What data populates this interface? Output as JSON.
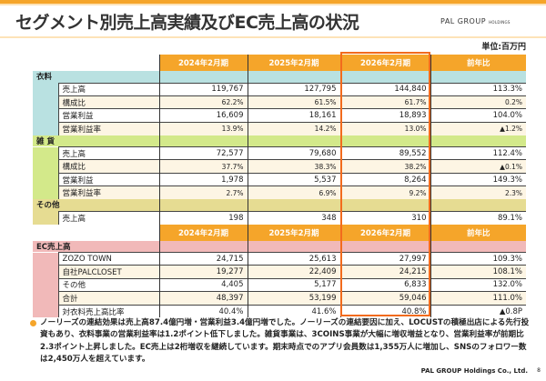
{
  "title": "セグメント別売上高実績及びEC売上高の状況",
  "logo": {
    "main": "PAL GROUP",
    "sub": "HOLDINGS"
  },
  "unit": "単位:百万円",
  "columns": [
    "2024年2月期",
    "2025年2月期",
    "2026年2月期",
    "前年比"
  ],
  "highlight_column": "2026年2月期",
  "colors": {
    "header": "#f5a52a",
    "highlight": "#f26b1d",
    "apparel": "#b9e1e1",
    "goods": "#d3e98a",
    "other": "#e6dc92",
    "ec": "#f1b9b9"
  },
  "groups": [
    {
      "label": "衣料",
      "cls": "c-apparel",
      "rows": [
        {
          "label": "売上高",
          "values": [
            "119,767",
            "127,795",
            "144,840",
            "113.3%"
          ]
        },
        {
          "label": "構成比",
          "small": true,
          "values": [
            "62.2%",
            "61.5%",
            "61.7%",
            "0.2%"
          ]
        },
        {
          "label": "営業利益",
          "values": [
            "16,609",
            "18,161",
            "18,893",
            "104.0%"
          ]
        },
        {
          "label": "営業利益率",
          "small": true,
          "values": [
            "13.9%",
            "14.2%",
            "13.0%",
            "▲1.2%"
          ]
        }
      ]
    },
    {
      "label": "雑 貨",
      "cls": "c-goods",
      "rows": [
        {
          "label": "売上高",
          "values": [
            "72,577",
            "79,680",
            "89,552",
            "112.4%"
          ]
        },
        {
          "label": "構成比",
          "small": true,
          "values": [
            "37.7%",
            "38.3%",
            "38.2%",
            "▲0.1%"
          ]
        },
        {
          "label": "営業利益",
          "values": [
            "1,978",
            "5,537",
            "8,264",
            "149.3%"
          ]
        },
        {
          "label": "営業利益率",
          "small": true,
          "values": [
            "2.7%",
            "6.9%",
            "9.2%",
            "2.3%"
          ]
        }
      ]
    },
    {
      "label": "その他",
      "cls": "c-other",
      "rows": [
        {
          "label": "売上高",
          "values": [
            "198",
            "348",
            "310",
            "89.1%"
          ]
        }
      ]
    },
    {
      "label": "EC売上高",
      "cls": "c-ec",
      "header_before": true,
      "rows": [
        {
          "label": "ZOZO TOWN",
          "values": [
            "24,715",
            "25,613",
            "27,997",
            "109.3%"
          ]
        },
        {
          "label": "自社PALCLOSET",
          "values": [
            "19,277",
            "22,409",
            "24,215",
            "108.1%"
          ]
        },
        {
          "label": "その他",
          "values": [
            "4,405",
            "5,177",
            "6,833",
            "132.0%"
          ]
        },
        {
          "label": "合計",
          "values": [
            "48,397",
            "53,199",
            "59,046",
            "111.0%"
          ]
        },
        {
          "label": "対衣料売上高比率",
          "values": [
            "40.4%",
            "41.6%",
            "40.8%",
            "▲0.8P"
          ]
        }
      ]
    }
  ],
  "note": "ノーリーズの連結効果は売上高87.4億円増・営業利益3.4億円増でした。ノーリーズの連結要因に加え、LOCUSTの積極出店による先行投資もあり、衣料事業の営業利益率は1.2ポイント低下しました。雑貨事業は、3COINS事業が大幅に増収増益となり、営業利益率が前期比2.3ポイント上昇しました。EC売上は2桁増収を継続しています。期末時点でのアプリ会員数は1,355万人に増加し、SNSのフォロワー数は2,450万人を超えています。",
  "footer": "PAL GROUP Holdings Co., Ltd.",
  "page_number": "8"
}
